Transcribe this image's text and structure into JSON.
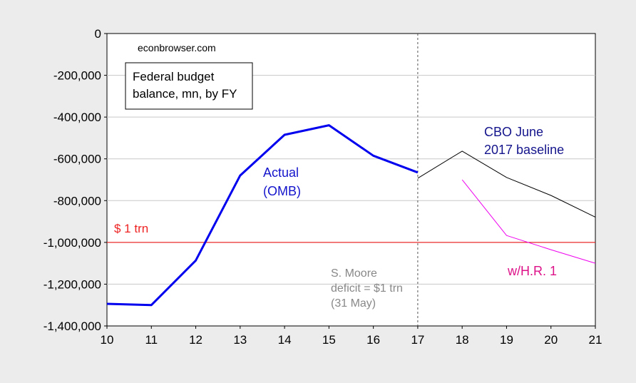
{
  "chart_data": {
    "type": "line",
    "title": "Federal budget balance, mn, by FY",
    "watermark": "econbrowser.com",
    "xlabel": "",
    "ylabel": "",
    "xlim": [
      10,
      21
    ],
    "ylim": [
      -1400000,
      0
    ],
    "x_ticks": [
      "10",
      "11",
      "12",
      "13",
      "14",
      "15",
      "16",
      "17",
      "18",
      "19",
      "20",
      "21"
    ],
    "y_ticks": [
      {
        "value": 0,
        "label": "0"
      },
      {
        "value": -200000,
        "label": "-200,000"
      },
      {
        "value": -400000,
        "label": "-400,000"
      },
      {
        "value": -600000,
        "label": "-600,000"
      },
      {
        "value": -800000,
        "label": "-800,000"
      },
      {
        "value": -1000000,
        "label": "-1,000,000"
      },
      {
        "value": -1200000,
        "label": "-1,200,000"
      },
      {
        "value": -1400000,
        "label": "-1,400,000"
      }
    ],
    "grid": true,
    "series": [
      {
        "key": "actual",
        "label_lines": [
          "Actual",
          "(OMB)"
        ],
        "color": "#0000ee",
        "x": [
          10,
          11,
          12,
          13,
          14,
          15,
          16,
          17
        ],
        "values": [
          -1294000,
          -1300000,
          -1087000,
          -680000,
          -485000,
          -439000,
          -585000,
          -665000
        ]
      },
      {
        "key": "cbo",
        "label_lines": [
          "CBO June",
          "2017 baseline"
        ],
        "color": "#000000",
        "x": [
          17,
          18,
          19,
          20,
          21
        ],
        "values": [
          -693000,
          -563000,
          -689000,
          -775000,
          -879000
        ]
      },
      {
        "key": "hr1",
        "label_lines": [
          "w/H.R. 1"
        ],
        "color": "#ee00ee",
        "x": [
          18,
          19,
          20,
          21
        ],
        "values": [
          -700000,
          -967000,
          -1035000,
          -1100000
        ]
      }
    ],
    "reference_line": {
      "value": -1000000,
      "label": "$ 1 trn",
      "color": "#ee0000"
    },
    "vertical_marker": {
      "x": 17,
      "label_lines": [
        "S. Moore",
        "deficit = $1 trn",
        "(31 May)"
      ],
      "color": "#888888"
    },
    "label_colors": {
      "actual": "#1414cc",
      "cbo": "#14148c",
      "hr1": "#dd1188",
      "reference": "#ee2222",
      "marker": "#888888"
    }
  }
}
